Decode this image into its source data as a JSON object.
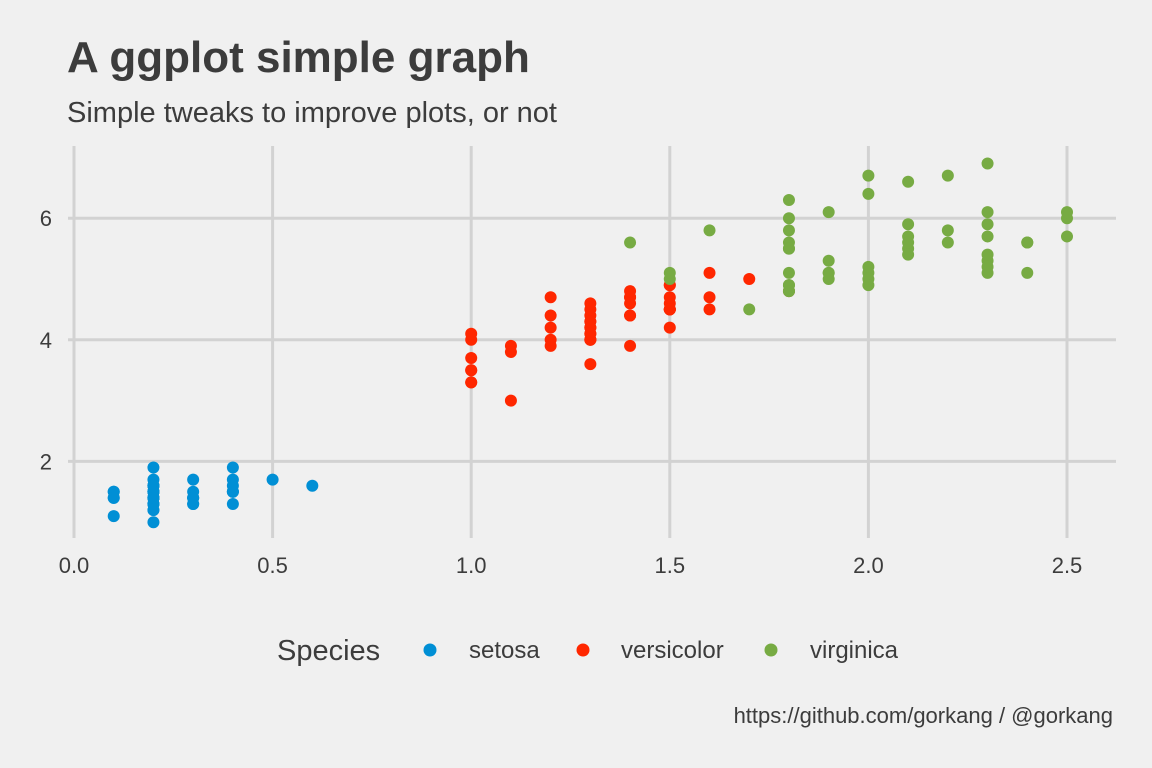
{
  "chart_data": {
    "type": "scatter",
    "title": "A ggplot simple graph",
    "subtitle": "Simple tweaks to improve plots, or not",
    "caption": "https://github.com/gorkang / @gorkang",
    "xlabel": "",
    "ylabel": "",
    "xlim": [
      0,
      2.5
    ],
    "ylim": [
      1,
      6.9
    ],
    "x_ticks": [
      "0.0",
      "0.5",
      "1.0",
      "1.5",
      "2.0",
      "2.5"
    ],
    "y_ticks": [
      "2",
      "4",
      "6"
    ],
    "grid": true,
    "legend": {
      "title": "Species",
      "placement": "bottom",
      "items": [
        "setosa",
        "versicolor",
        "virginica"
      ]
    },
    "series": [
      {
        "name": "setosa",
        "color": "#008fd5",
        "points": [
          [
            0.2,
            1.4
          ],
          [
            0.2,
            1.4
          ],
          [
            0.2,
            1.3
          ],
          [
            0.2,
            1.5
          ],
          [
            0.2,
            1.4
          ],
          [
            0.4,
            1.7
          ],
          [
            0.3,
            1.4
          ],
          [
            0.2,
            1.5
          ],
          [
            0.2,
            1.4
          ],
          [
            0.1,
            1.5
          ],
          [
            0.2,
            1.5
          ],
          [
            0.2,
            1.6
          ],
          [
            0.1,
            1.4
          ],
          [
            0.1,
            1.1
          ],
          [
            0.2,
            1.2
          ],
          [
            0.4,
            1.5
          ],
          [
            0.4,
            1.3
          ],
          [
            0.3,
            1.4
          ],
          [
            0.3,
            1.7
          ],
          [
            0.3,
            1.5
          ],
          [
            0.2,
            1.7
          ],
          [
            0.4,
            1.5
          ],
          [
            0.2,
            1.0
          ],
          [
            0.5,
            1.7
          ],
          [
            0.2,
            1.9
          ],
          [
            0.2,
            1.6
          ],
          [
            0.4,
            1.6
          ],
          [
            0.2,
            1.5
          ],
          [
            0.2,
            1.4
          ],
          [
            0.2,
            1.6
          ],
          [
            0.2,
            1.6
          ],
          [
            0.4,
            1.5
          ],
          [
            0.1,
            1.5
          ],
          [
            0.2,
            1.4
          ],
          [
            0.2,
            1.5
          ],
          [
            0.2,
            1.2
          ],
          [
            0.2,
            1.3
          ],
          [
            0.1,
            1.4
          ],
          [
            0.2,
            1.3
          ],
          [
            0.2,
            1.5
          ],
          [
            0.3,
            1.3
          ],
          [
            0.3,
            1.3
          ],
          [
            0.2,
            1.3
          ],
          [
            0.6,
            1.6
          ],
          [
            0.4,
            1.9
          ],
          [
            0.3,
            1.4
          ],
          [
            0.2,
            1.6
          ],
          [
            0.2,
            1.4
          ],
          [
            0.2,
            1.5
          ],
          [
            0.2,
            1.4
          ]
        ]
      },
      {
        "name": "versicolor",
        "color": "#ff2700",
        "points": [
          [
            1.4,
            4.7
          ],
          [
            1.5,
            4.5
          ],
          [
            1.5,
            4.9
          ],
          [
            1.3,
            4.0
          ],
          [
            1.5,
            4.6
          ],
          [
            1.3,
            4.5
          ],
          [
            1.6,
            4.7
          ],
          [
            1.0,
            3.3
          ],
          [
            1.3,
            4.6
          ],
          [
            1.4,
            3.9
          ],
          [
            1.0,
            3.5
          ],
          [
            1.5,
            4.2
          ],
          [
            1.0,
            4.0
          ],
          [
            1.4,
            4.7
          ],
          [
            1.3,
            3.6
          ],
          [
            1.4,
            4.4
          ],
          [
            1.5,
            4.5
          ],
          [
            1.0,
            4.1
          ],
          [
            1.5,
            4.5
          ],
          [
            1.1,
            3.9
          ],
          [
            1.8,
            4.8
          ],
          [
            1.3,
            4.0
          ],
          [
            1.5,
            4.9
          ],
          [
            1.2,
            4.7
          ],
          [
            1.3,
            4.3
          ],
          [
            1.4,
            4.4
          ],
          [
            1.4,
            4.8
          ],
          [
            1.7,
            5.0
          ],
          [
            1.5,
            4.5
          ],
          [
            1.0,
            3.5
          ],
          [
            1.1,
            3.8
          ],
          [
            1.0,
            3.7
          ],
          [
            1.2,
            3.9
          ],
          [
            1.6,
            5.1
          ],
          [
            1.5,
            4.5
          ],
          [
            1.6,
            4.5
          ],
          [
            1.5,
            4.7
          ],
          [
            1.3,
            4.4
          ],
          [
            1.3,
            4.1
          ],
          [
            1.3,
            4.0
          ],
          [
            1.2,
            4.4
          ],
          [
            1.4,
            4.6
          ],
          [
            1.2,
            4.0
          ],
          [
            1.0,
            3.3
          ],
          [
            1.3,
            4.2
          ],
          [
            1.2,
            4.2
          ],
          [
            1.3,
            4.2
          ],
          [
            1.3,
            4.3
          ],
          [
            1.1,
            3.0
          ],
          [
            1.3,
            4.1
          ]
        ]
      },
      {
        "name": "virginica",
        "color": "#77ab43",
        "points": [
          [
            2.5,
            6.0
          ],
          [
            1.9,
            5.1
          ],
          [
            2.1,
            5.9
          ],
          [
            1.8,
            5.6
          ],
          [
            2.2,
            5.8
          ],
          [
            2.1,
            6.6
          ],
          [
            1.7,
            4.5
          ],
          [
            1.8,
            6.3
          ],
          [
            1.8,
            5.8
          ],
          [
            2.5,
            6.1
          ],
          [
            2.0,
            5.1
          ],
          [
            1.9,
            5.3
          ],
          [
            2.1,
            5.5
          ],
          [
            2.0,
            5.0
          ],
          [
            2.4,
            5.1
          ],
          [
            2.3,
            5.3
          ],
          [
            1.8,
            5.5
          ],
          [
            2.2,
            6.7
          ],
          [
            2.3,
            6.9
          ],
          [
            1.5,
            5.0
          ],
          [
            2.3,
            5.7
          ],
          [
            2.0,
            4.9
          ],
          [
            2.0,
            6.7
          ],
          [
            1.8,
            4.9
          ],
          [
            2.1,
            5.7
          ],
          [
            1.8,
            6.0
          ],
          [
            1.8,
            4.8
          ],
          [
            1.8,
            4.9
          ],
          [
            2.1,
            5.6
          ],
          [
            1.6,
            5.8
          ],
          [
            1.9,
            6.1
          ],
          [
            2.0,
            6.4
          ],
          [
            2.2,
            5.6
          ],
          [
            1.5,
            5.1
          ],
          [
            1.4,
            5.6
          ],
          [
            2.3,
            6.1
          ],
          [
            2.4,
            5.6
          ],
          [
            1.8,
            5.5
          ],
          [
            1.8,
            4.8
          ],
          [
            2.1,
            5.4
          ],
          [
            2.4,
            5.6
          ],
          [
            2.3,
            5.1
          ],
          [
            1.9,
            5.1
          ],
          [
            2.3,
            5.9
          ],
          [
            2.5,
            5.7
          ],
          [
            2.3,
            5.2
          ],
          [
            1.9,
            5.0
          ],
          [
            2.0,
            5.2
          ],
          [
            2.3,
            5.4
          ],
          [
            1.8,
            5.1
          ]
        ]
      }
    ]
  }
}
